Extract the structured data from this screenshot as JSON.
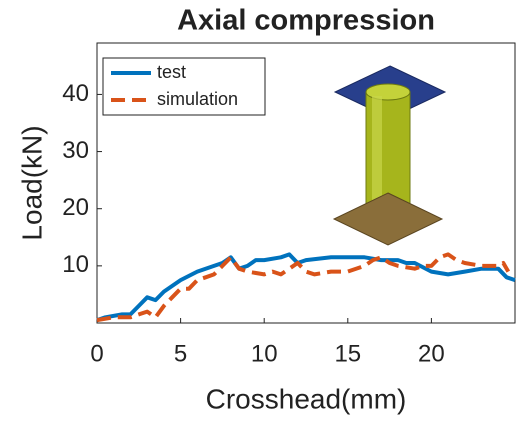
{
  "chart_data": {
    "type": "line",
    "title": "Axial compression",
    "xlabel": "Crosshead(mm)",
    "ylabel": "Load(kN)",
    "xlim": [
      0,
      25
    ],
    "ylim": [
      0,
      49
    ],
    "xticks": [
      0,
      5,
      10,
      15,
      20
    ],
    "yticks": [
      10,
      20,
      30,
      40
    ],
    "legend": "upper left",
    "series": [
      {
        "name": "test",
        "color": "#0072bd",
        "linestyle": "solid",
        "x": [
          0,
          0.5,
          1.5,
          2,
          2.5,
          3,
          3.5,
          4,
          5,
          6,
          7,
          7.5,
          8,
          8.5,
          9,
          9.5,
          10,
          11,
          11.5,
          12,
          12.5,
          14,
          16,
          17,
          18,
          18.5,
          19,
          20,
          21,
          22,
          23,
          24,
          24.5,
          25
        ],
        "values": [
          0.5,
          1,
          1.5,
          1.5,
          3,
          4.5,
          4,
          5.5,
          7.5,
          9,
          10,
          10.5,
          11.5,
          9.5,
          10,
          11,
          11,
          11.5,
          12,
          10.5,
          11,
          11.5,
          11.5,
          11,
          11,
          10.5,
          10.5,
          9,
          8.5,
          9,
          9.5,
          9.5,
          8,
          7.5
        ]
      },
      {
        "name": "simulation",
        "color": "#d95319",
        "linestyle": "dashed",
        "x": [
          0,
          1,
          2,
          2.5,
          3,
          3.5,
          4,
          4.5,
          5,
          5.5,
          6,
          6.5,
          7,
          7.5,
          8,
          8.5,
          9,
          10,
          10.5,
          11,
          11.5,
          12,
          12.5,
          13,
          14,
          15,
          16,
          16.5,
          17,
          17.5,
          18,
          19,
          19.5,
          20,
          20.5,
          21,
          21.5,
          22,
          23,
          24,
          24.3,
          24.6
        ],
        "values": [
          0.5,
          1,
          1,
          1.5,
          2,
          1,
          3,
          4.5,
          6,
          6,
          7.5,
          8,
          8.5,
          10,
          11.5,
          9.5,
          9,
          8.5,
          9,
          8.5,
          9.5,
          10.5,
          9,
          8.5,
          9,
          9,
          10,
          11,
          11.5,
          10.5,
          10,
          9.5,
          10,
          10,
          11.5,
          12,
          11,
          10.5,
          10,
          10,
          10.5,
          9
        ]
      }
    ]
  }
}
